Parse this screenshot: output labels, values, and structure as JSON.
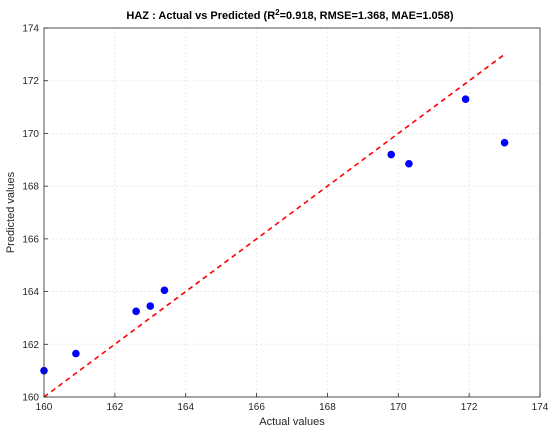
{
  "chart_data": {
    "type": "scatter",
    "title_parts": {
      "prefix": "HAZ : Actual vs Predicted (R",
      "sup": "2",
      "suffix": "=0.918, RMSE=1.368, MAE=1.058)"
    },
    "xlabel": "Actual values",
    "ylabel": "Predicted values",
    "xlim": [
      160,
      174
    ],
    "ylim": [
      160,
      174
    ],
    "xticks": [
      "160",
      "162",
      "164",
      "166",
      "168",
      "170",
      "172",
      "174"
    ],
    "yticks": [
      "160",
      "162",
      "164",
      "166",
      "168",
      "170",
      "172",
      "174"
    ],
    "grid": true,
    "points": [
      {
        "x": 160.0,
        "y": 161.0
      },
      {
        "x": 160.9,
        "y": 161.65
      },
      {
        "x": 162.6,
        "y": 163.25
      },
      {
        "x": 163.0,
        "y": 163.45
      },
      {
        "x": 163.4,
        "y": 164.05
      },
      {
        "x": 169.8,
        "y": 169.2
      },
      {
        "x": 170.3,
        "y": 168.85
      },
      {
        "x": 171.9,
        "y": 171.3
      },
      {
        "x": 173.0,
        "y": 169.65
      }
    ],
    "reference_line": {
      "x": [
        160,
        173
      ],
      "y": [
        160,
        173
      ],
      "style": "dashed"
    },
    "colors": {
      "points": "#0000ff",
      "reference_line": "#ff0000",
      "grid": "#e6e6e6",
      "axes": "#262626"
    }
  }
}
